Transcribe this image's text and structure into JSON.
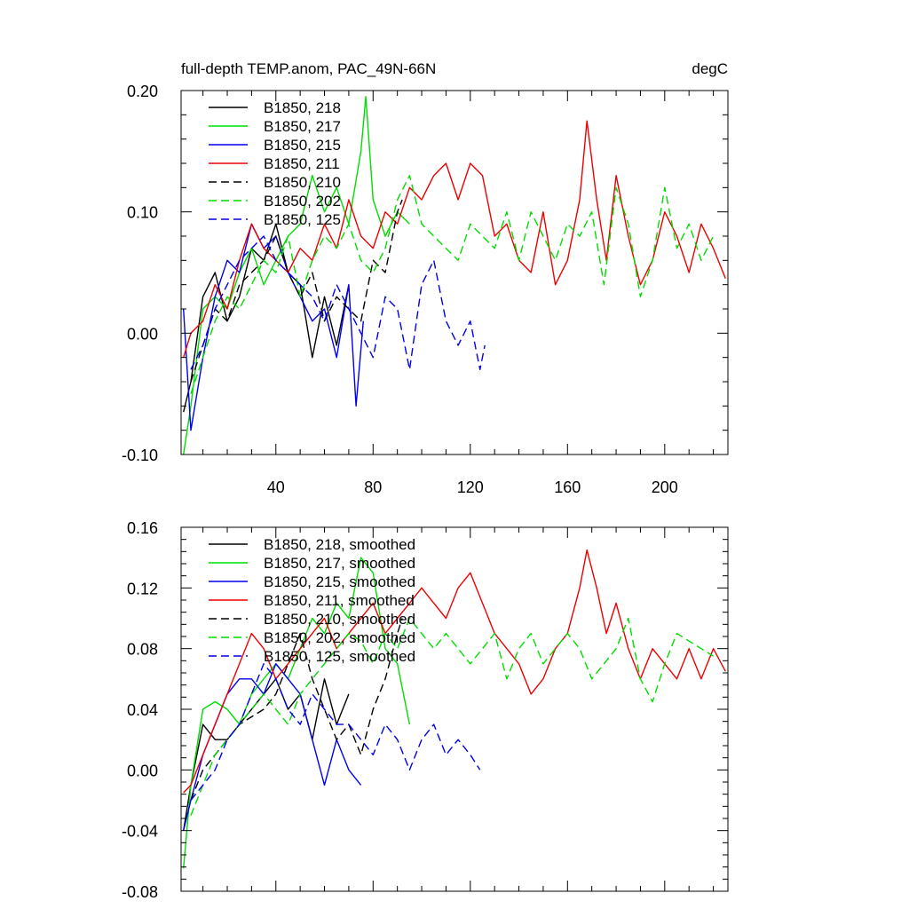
{
  "chart_data": [
    {
      "type": "line",
      "title": "full-depth TEMP.anom, PAC_49N-66N",
      "units_label": "degC",
      "xlim": [
        1,
        226
      ],
      "ylim": [
        -0.1,
        0.2
      ],
      "yticks": [
        -0.1,
        0.0,
        0.1,
        0.2
      ],
      "ytick_labels": [
        "-0.10",
        "0.00",
        "0.10",
        "0.20"
      ],
      "xticks": [
        40,
        80,
        120,
        160,
        200
      ],
      "xtick_labels": [
        "40",
        "80",
        "120",
        "160",
        "200"
      ],
      "legend_position": "top-left",
      "series": [
        {
          "name": "B1850, 218",
          "color": "#000000",
          "dash": "solid",
          "x": [
            2,
            5,
            10,
            15,
            20,
            25,
            30,
            35,
            40,
            45,
            50,
            55,
            60,
            65,
            70
          ],
          "y": [
            -0.065,
            -0.04,
            0.03,
            0.05,
            0.01,
            0.03,
            0.07,
            0.06,
            0.09,
            0.05,
            0.04,
            -0.02,
            0.03,
            -0.01,
            0.04
          ]
        },
        {
          "name": "B1850, 217",
          "color": "#00dd00",
          "dash": "solid",
          "x": [
            2,
            5,
            10,
            15,
            20,
            25,
            30,
            35,
            40,
            45,
            50,
            55,
            60,
            65,
            70,
            75,
            77,
            80,
            85,
            90,
            95
          ],
          "y": [
            -0.1,
            -0.06,
            0.02,
            0.03,
            0.02,
            0.05,
            0.07,
            0.04,
            0.06,
            0.08,
            0.09,
            0.13,
            0.1,
            0.12,
            0.09,
            0.15,
            0.195,
            0.11,
            0.08,
            0.1,
            0.09
          ]
        },
        {
          "name": "B1850, 215",
          "color": "#0000ee",
          "dash": "solid",
          "x": [
            2,
            5,
            10,
            15,
            20,
            25,
            30,
            35,
            40,
            45,
            50,
            55,
            60,
            65,
            70,
            73,
            76
          ],
          "y": [
            0.02,
            -0.08,
            -0.02,
            0.03,
            0.06,
            0.05,
            0.09,
            0.07,
            0.08,
            0.05,
            0.03,
            0.01,
            0.02,
            -0.02,
            0.04,
            -0.06,
            0.01
          ]
        },
        {
          "name": "B1850, 211",
          "color": "#ee0000",
          "dash": "solid",
          "x": [
            2,
            5,
            10,
            15,
            20,
            25,
            30,
            35,
            40,
            45,
            50,
            55,
            60,
            65,
            70,
            75,
            80,
            85,
            90,
            95,
            100,
            105,
            110,
            115,
            120,
            125,
            130,
            135,
            140,
            145,
            150,
            155,
            160,
            165,
            168,
            172,
            176,
            180,
            185,
            190,
            195,
            200,
            205,
            210,
            215,
            220,
            225
          ],
          "y": [
            -0.02,
            0.0,
            0.01,
            0.04,
            0.02,
            0.06,
            0.09,
            0.07,
            0.06,
            0.05,
            0.07,
            0.06,
            0.09,
            0.07,
            0.11,
            0.08,
            0.07,
            0.1,
            0.09,
            0.12,
            0.11,
            0.13,
            0.14,
            0.11,
            0.14,
            0.13,
            0.08,
            0.09,
            0.06,
            0.05,
            0.1,
            0.04,
            0.06,
            0.11,
            0.175,
            0.11,
            0.06,
            0.13,
            0.08,
            0.04,
            0.06,
            0.1,
            0.08,
            0.05,
            0.09,
            0.07,
            0.045
          ]
        },
        {
          "name": "B1850, 210",
          "color": "#000000",
          "dash": "dash",
          "x": [
            5,
            10,
            15,
            20,
            25,
            30,
            35,
            40,
            45,
            50,
            55,
            60,
            65,
            70,
            75,
            80,
            85,
            90,
            92
          ],
          "y": [
            -0.04,
            -0.01,
            0.02,
            0.01,
            0.04,
            0.05,
            0.06,
            0.08,
            0.05,
            0.03,
            0.05,
            0.01,
            0.03,
            0.02,
            0.01,
            0.06,
            0.05,
            0.1,
            0.11
          ]
        },
        {
          "name": "B1850, 202",
          "color": "#00dd00",
          "dash": "dash",
          "x": [
            5,
            10,
            15,
            20,
            25,
            30,
            35,
            40,
            45,
            50,
            55,
            60,
            65,
            70,
            75,
            80,
            85,
            90,
            95,
            100,
            105,
            110,
            115,
            120,
            125,
            130,
            135,
            140,
            145,
            150,
            155,
            160,
            165,
            170,
            175,
            180,
            185,
            190,
            195,
            200,
            205,
            210,
            215,
            220
          ],
          "y": [
            -0.05,
            -0.02,
            0.01,
            0.03,
            0.02,
            0.04,
            0.06,
            0.05,
            0.08,
            0.03,
            0.06,
            0.08,
            0.07,
            0.09,
            0.06,
            0.05,
            0.07,
            0.11,
            0.13,
            0.09,
            0.08,
            0.07,
            0.06,
            0.09,
            0.08,
            0.07,
            0.1,
            0.06,
            0.1,
            0.08,
            0.06,
            0.09,
            0.08,
            0.1,
            0.04,
            0.12,
            0.09,
            0.03,
            0.06,
            0.12,
            0.07,
            0.09,
            0.06,
            0.08
          ]
        },
        {
          "name": "B1850, 125",
          "color": "#0000ee",
          "dash": "dash",
          "x": [
            5,
            10,
            15,
            20,
            25,
            30,
            35,
            40,
            45,
            50,
            55,
            60,
            65,
            70,
            75,
            80,
            85,
            90,
            95,
            100,
            105,
            110,
            115,
            120,
            124,
            126
          ],
          "y": [
            -0.03,
            -0.01,
            0.02,
            0.04,
            0.06,
            0.07,
            0.08,
            0.06,
            0.05,
            0.04,
            0.03,
            0.01,
            0.04,
            0.02,
            0.0,
            -0.02,
            0.03,
            0.02,
            -0.03,
            0.04,
            0.06,
            0.01,
            -0.01,
            0.01,
            -0.03,
            -0.01
          ]
        }
      ]
    },
    {
      "type": "line",
      "title": "",
      "xlim": [
        1,
        226
      ],
      "ylim": [
        -0.08,
        0.16
      ],
      "yticks": [
        -0.08,
        -0.04,
        0.0,
        0.04,
        0.08,
        0.12,
        0.16
      ],
      "ytick_labels": [
        "-0.08",
        "-0.04",
        "0.00",
        "0.04",
        "0.08",
        "0.12",
        "0.16"
      ],
      "xticks": [
        40,
        80,
        120,
        160,
        200
      ],
      "xtick_labels": [],
      "legend_position": "top-left",
      "series": [
        {
          "name": "B1850, 218, smoothed",
          "color": "#000000",
          "dash": "solid",
          "x": [
            2,
            5,
            10,
            15,
            20,
            25,
            30,
            35,
            40,
            45,
            50,
            55,
            60,
            65,
            70
          ],
          "y": [
            -0.04,
            -0.01,
            0.03,
            0.02,
            0.02,
            0.03,
            0.04,
            0.05,
            0.06,
            0.04,
            0.05,
            0.02,
            0.06,
            0.03,
            0.05
          ]
        },
        {
          "name": "B1850, 217, smoothed",
          "color": "#00dd00",
          "dash": "solid",
          "x": [
            2,
            5,
            10,
            15,
            20,
            25,
            30,
            35,
            40,
            45,
            50,
            55,
            60,
            65,
            70,
            75,
            80,
            85,
            90,
            95
          ],
          "y": [
            -0.065,
            -0.01,
            0.04,
            0.045,
            0.04,
            0.03,
            0.05,
            0.06,
            0.07,
            0.06,
            0.08,
            0.1,
            0.09,
            0.11,
            0.1,
            0.14,
            0.13,
            0.08,
            0.07,
            0.03
          ]
        },
        {
          "name": "B1850, 215, smoothed",
          "color": "#0000ee",
          "dash": "solid",
          "x": [
            2,
            5,
            10,
            15,
            20,
            25,
            30,
            35,
            40,
            45,
            50,
            55,
            60,
            65,
            70,
            75
          ],
          "y": [
            -0.04,
            -0.02,
            0.01,
            0.03,
            0.05,
            0.06,
            0.06,
            0.05,
            0.07,
            0.06,
            0.05,
            0.02,
            -0.01,
            0.02,
            0.0,
            -0.01
          ]
        },
        {
          "name": "B1850, 211, smoothed",
          "color": "#ee0000",
          "dash": "solid",
          "x": [
            2,
            5,
            10,
            15,
            20,
            25,
            30,
            35,
            40,
            45,
            50,
            55,
            60,
            65,
            70,
            75,
            80,
            85,
            90,
            95,
            100,
            105,
            110,
            115,
            120,
            125,
            130,
            135,
            140,
            145,
            150,
            155,
            160,
            165,
            168,
            172,
            176,
            180,
            185,
            190,
            195,
            200,
            205,
            210,
            215,
            220,
            225
          ],
          "y": [
            -0.015,
            -0.01,
            0.01,
            0.03,
            0.05,
            0.07,
            0.09,
            0.08,
            0.06,
            0.07,
            0.08,
            0.09,
            0.1,
            0.08,
            0.09,
            0.1,
            0.11,
            0.09,
            0.1,
            0.11,
            0.12,
            0.11,
            0.1,
            0.12,
            0.13,
            0.11,
            0.09,
            0.08,
            0.07,
            0.05,
            0.06,
            0.08,
            0.09,
            0.12,
            0.145,
            0.12,
            0.09,
            0.11,
            0.08,
            0.06,
            0.08,
            0.07,
            0.06,
            0.08,
            0.06,
            0.08,
            0.065
          ]
        },
        {
          "name": "B1850, 210, smoothed",
          "color": "#000000",
          "dash": "dash",
          "x": [
            5,
            10,
            15,
            20,
            25,
            30,
            35,
            40,
            45,
            50,
            55,
            60,
            65,
            70,
            75,
            80,
            85,
            90,
            92
          ],
          "y": [
            -0.02,
            0.0,
            0.01,
            0.02,
            0.03,
            0.035,
            0.04,
            0.05,
            0.07,
            0.09,
            0.06,
            0.04,
            0.02,
            0.03,
            0.01,
            0.04,
            0.06,
            0.09,
            0.1
          ]
        },
        {
          "name": "B1850, 202, smoothed",
          "color": "#00dd00",
          "dash": "dash",
          "x": [
            5,
            10,
            15,
            20,
            25,
            30,
            35,
            40,
            45,
            50,
            55,
            60,
            65,
            70,
            75,
            80,
            85,
            90,
            95,
            100,
            105,
            110,
            115,
            120,
            125,
            130,
            135,
            140,
            145,
            150,
            155,
            160,
            165,
            170,
            175,
            180,
            185,
            190,
            195,
            200,
            205,
            210,
            215,
            220
          ],
          "y": [
            -0.03,
            -0.01,
            0.01,
            0.02,
            0.03,
            0.04,
            0.05,
            0.04,
            0.03,
            0.05,
            0.06,
            0.07,
            0.08,
            0.09,
            0.085,
            0.07,
            0.09,
            0.08,
            0.1,
            0.09,
            0.08,
            0.09,
            0.08,
            0.07,
            0.08,
            0.09,
            0.06,
            0.08,
            0.09,
            0.07,
            0.08,
            0.09,
            0.08,
            0.06,
            0.07,
            0.08,
            0.1,
            0.06,
            0.045,
            0.07,
            0.09,
            0.085,
            0.08,
            0.075
          ]
        },
        {
          "name": "B1850, 125, smoothed",
          "color": "#0000ee",
          "dash": "dash",
          "x": [
            5,
            10,
            15,
            20,
            25,
            30,
            35,
            40,
            45,
            50,
            55,
            60,
            65,
            70,
            75,
            80,
            85,
            90,
            95,
            100,
            105,
            110,
            115,
            120,
            124
          ],
          "y": [
            -0.02,
            -0.01,
            0.0,
            0.02,
            0.03,
            0.05,
            0.07,
            0.06,
            0.04,
            0.03,
            0.05,
            0.04,
            0.03,
            0.03,
            0.02,
            0.01,
            0.03,
            0.02,
            0.0,
            0.02,
            0.03,
            0.01,
            0.02,
            0.01,
            0.0
          ]
        }
      ]
    }
  ]
}
